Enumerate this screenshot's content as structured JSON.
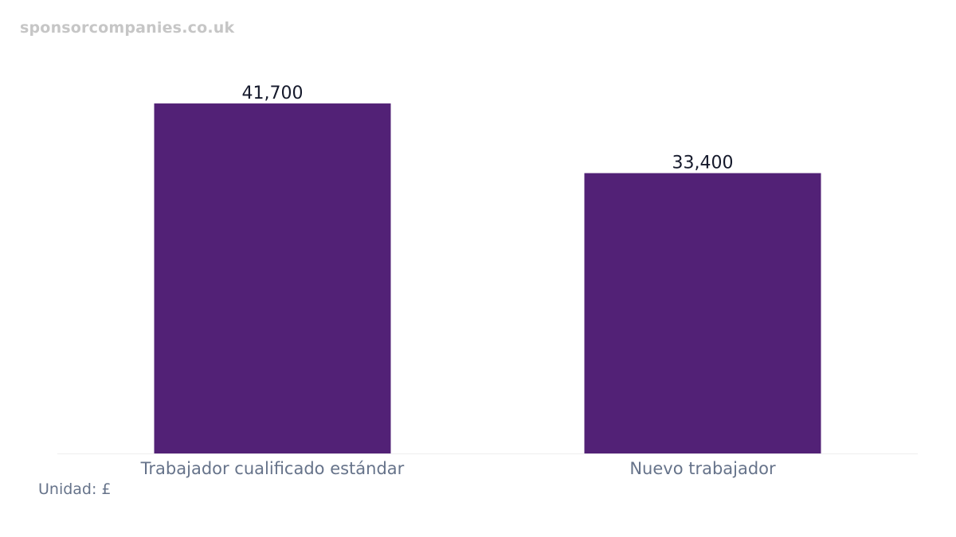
{
  "watermark": "sponsorcompanies.co.uk",
  "unit_note": "Unidad: £",
  "colors": {
    "bar": "#522176",
    "axis": "#eeeeee"
  },
  "chart_data": {
    "type": "bar",
    "categories": [
      "Trabajador cualificado estándar",
      "Nuevo trabajador"
    ],
    "values": [
      41700,
      33400
    ],
    "value_labels": [
      "41,700",
      "33,400"
    ],
    "title": "",
    "xlabel": "",
    "ylabel": "",
    "ylim": [
      0,
      43600
    ],
    "grid": false,
    "legend": "none"
  }
}
